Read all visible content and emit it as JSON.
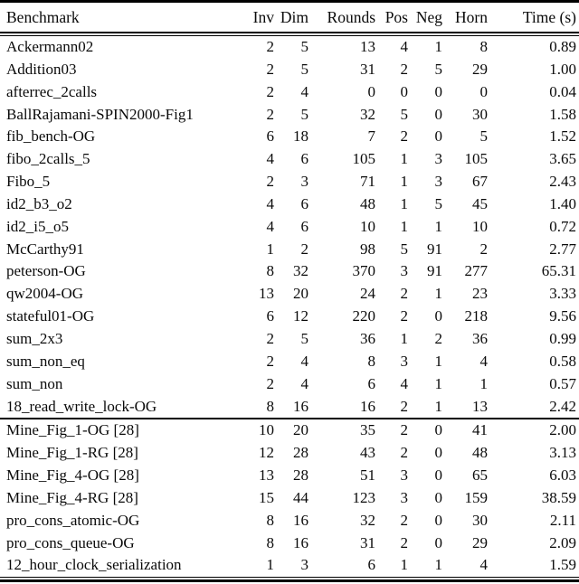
{
  "table": {
    "columns": [
      {
        "key": "benchmark",
        "label": "Benchmark",
        "align": "left"
      },
      {
        "key": "inv",
        "label": "Inv",
        "align": "right"
      },
      {
        "key": "dim",
        "label": "Dim",
        "align": "right"
      },
      {
        "key": "rounds",
        "label": "Rounds",
        "align": "right"
      },
      {
        "key": "pos",
        "label": "Pos",
        "align": "right"
      },
      {
        "key": "neg",
        "label": "Neg",
        "align": "right"
      },
      {
        "key": "horn",
        "label": "Horn",
        "align": "right"
      },
      {
        "key": "time",
        "label": "Time (s)",
        "align": "right"
      }
    ],
    "sections": [
      {
        "rows": [
          [
            "Ackermann02",
            "2",
            "5",
            "13",
            "4",
            "1",
            "8",
            "0.89"
          ],
          [
            "Addition03",
            "2",
            "5",
            "31",
            "2",
            "5",
            "29",
            "1.00"
          ],
          [
            "afterrec_2calls",
            "2",
            "4",
            "0",
            "0",
            "0",
            "0",
            "0.04"
          ],
          [
            "BallRajamani-SPIN2000-Fig1",
            "2",
            "5",
            "32",
            "5",
            "0",
            "30",
            "1.58"
          ],
          [
            "fib_bench-OG",
            "6",
            "18",
            "7",
            "2",
            "0",
            "5",
            "1.52"
          ],
          [
            "fibo_2calls_5",
            "4",
            "6",
            "105",
            "1",
            "3",
            "105",
            "3.65"
          ],
          [
            "Fibo_5",
            "2",
            "3",
            "71",
            "1",
            "3",
            "67",
            "2.43"
          ],
          [
            "id2_b3_o2",
            "4",
            "6",
            "48",
            "1",
            "5",
            "45",
            "1.40"
          ],
          [
            "id2_i5_o5",
            "4",
            "6",
            "10",
            "1",
            "1",
            "10",
            "0.72"
          ],
          [
            "McCarthy91",
            "1",
            "2",
            "98",
            "5",
            "91",
            "2",
            "2.77"
          ],
          [
            "peterson-OG",
            "8",
            "32",
            "370",
            "3",
            "91",
            "277",
            "65.31"
          ],
          [
            "qw2004-OG",
            "13",
            "20",
            "24",
            "2",
            "1",
            "23",
            "3.33"
          ],
          [
            "stateful01-OG",
            "6",
            "12",
            "220",
            "2",
            "0",
            "218",
            "9.56"
          ],
          [
            "sum_2x3",
            "2",
            "5",
            "36",
            "1",
            "2",
            "36",
            "0.99"
          ],
          [
            "sum_non_eq",
            "2",
            "4",
            "8",
            "3",
            "1",
            "4",
            "0.58"
          ],
          [
            "sum_non",
            "2",
            "4",
            "6",
            "4",
            "1",
            "1",
            "0.57"
          ],
          [
            "18_read_write_lock-OG",
            "8",
            "16",
            "16",
            "2",
            "1",
            "13",
            "2.42"
          ]
        ]
      },
      {
        "rows": [
          [
            "Mine_Fig_1-OG [28]",
            "10",
            "20",
            "35",
            "2",
            "0",
            "41",
            "2.00"
          ],
          [
            "Mine_Fig_1-RG [28]",
            "12",
            "28",
            "43",
            "2",
            "0",
            "48",
            "3.13"
          ],
          [
            "Mine_Fig_4-OG [28]",
            "13",
            "28",
            "51",
            "3",
            "0",
            "65",
            "6.03"
          ],
          [
            "Mine_Fig_4-RG [28]",
            "15",
            "44",
            "123",
            "3",
            "0",
            "159",
            "38.59"
          ],
          [
            "pro_cons_atomic-OG",
            "8",
            "16",
            "32",
            "2",
            "0",
            "30",
            "2.11"
          ],
          [
            "pro_cons_queue-OG",
            "8",
            "16",
            "31",
            "2",
            "0",
            "29",
            "2.09"
          ],
          [
            "12_hour_clock_serialization",
            "1",
            "3",
            "6",
            "1",
            "1",
            "4",
            "1.59"
          ]
        ]
      }
    ]
  }
}
